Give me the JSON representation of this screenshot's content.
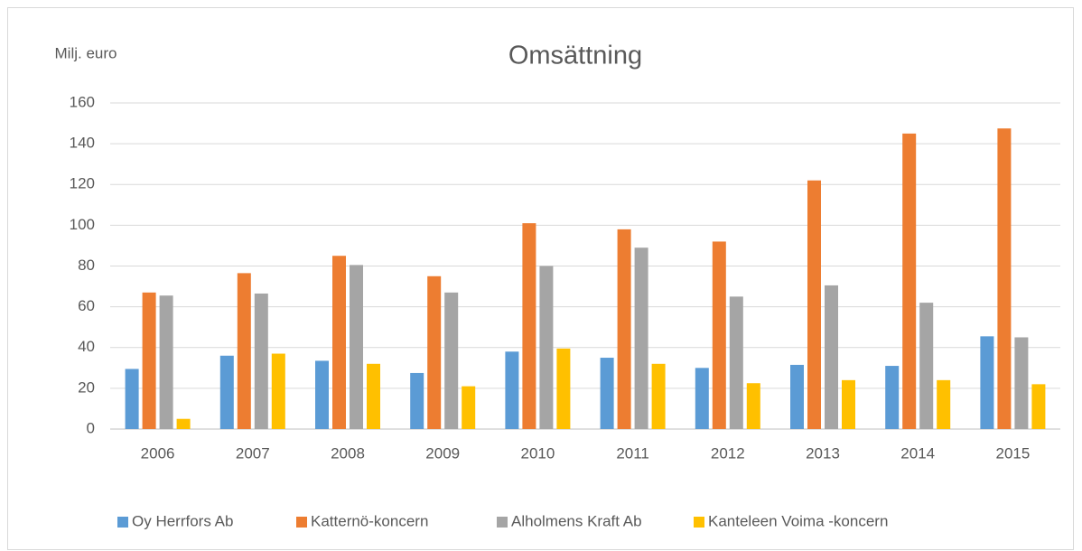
{
  "chart_data": {
    "type": "bar",
    "title": "Omsättning",
    "y_label": "Milj. euro",
    "categories": [
      "2006",
      "2007",
      "2008",
      "2009",
      "2010",
      "2011",
      "2012",
      "2013",
      "2014",
      "2015"
    ],
    "series": [
      {
        "name": "Oy Herrfors Ab",
        "color": "#5b9bd5",
        "values": [
          29.5,
          36,
          33.5,
          27.5,
          38,
          35,
          30,
          31.5,
          31,
          45.5
        ]
      },
      {
        "name": "Katternö-koncern",
        "color": "#ed7d31",
        "values": [
          67,
          76.5,
          85,
          75,
          101,
          98,
          92,
          122,
          145,
          147.5
        ]
      },
      {
        "name": "Alholmens Kraft Ab",
        "color": "#a5a5a5",
        "values": [
          65.5,
          66.5,
          80.5,
          67,
          80,
          89,
          65,
          70.5,
          62,
          45
        ]
      },
      {
        "name": "Kanteleen Voima -koncern",
        "color": "#ffc000",
        "values": [
          5,
          37,
          32,
          21,
          39.5,
          32,
          22.5,
          24,
          24,
          22
        ]
      }
    ],
    "ylim": [
      0,
      160
    ],
    "yticks": [
      0,
      20,
      40,
      60,
      80,
      100,
      120,
      140,
      160
    ],
    "grid": true,
    "legend": "bottom"
  }
}
